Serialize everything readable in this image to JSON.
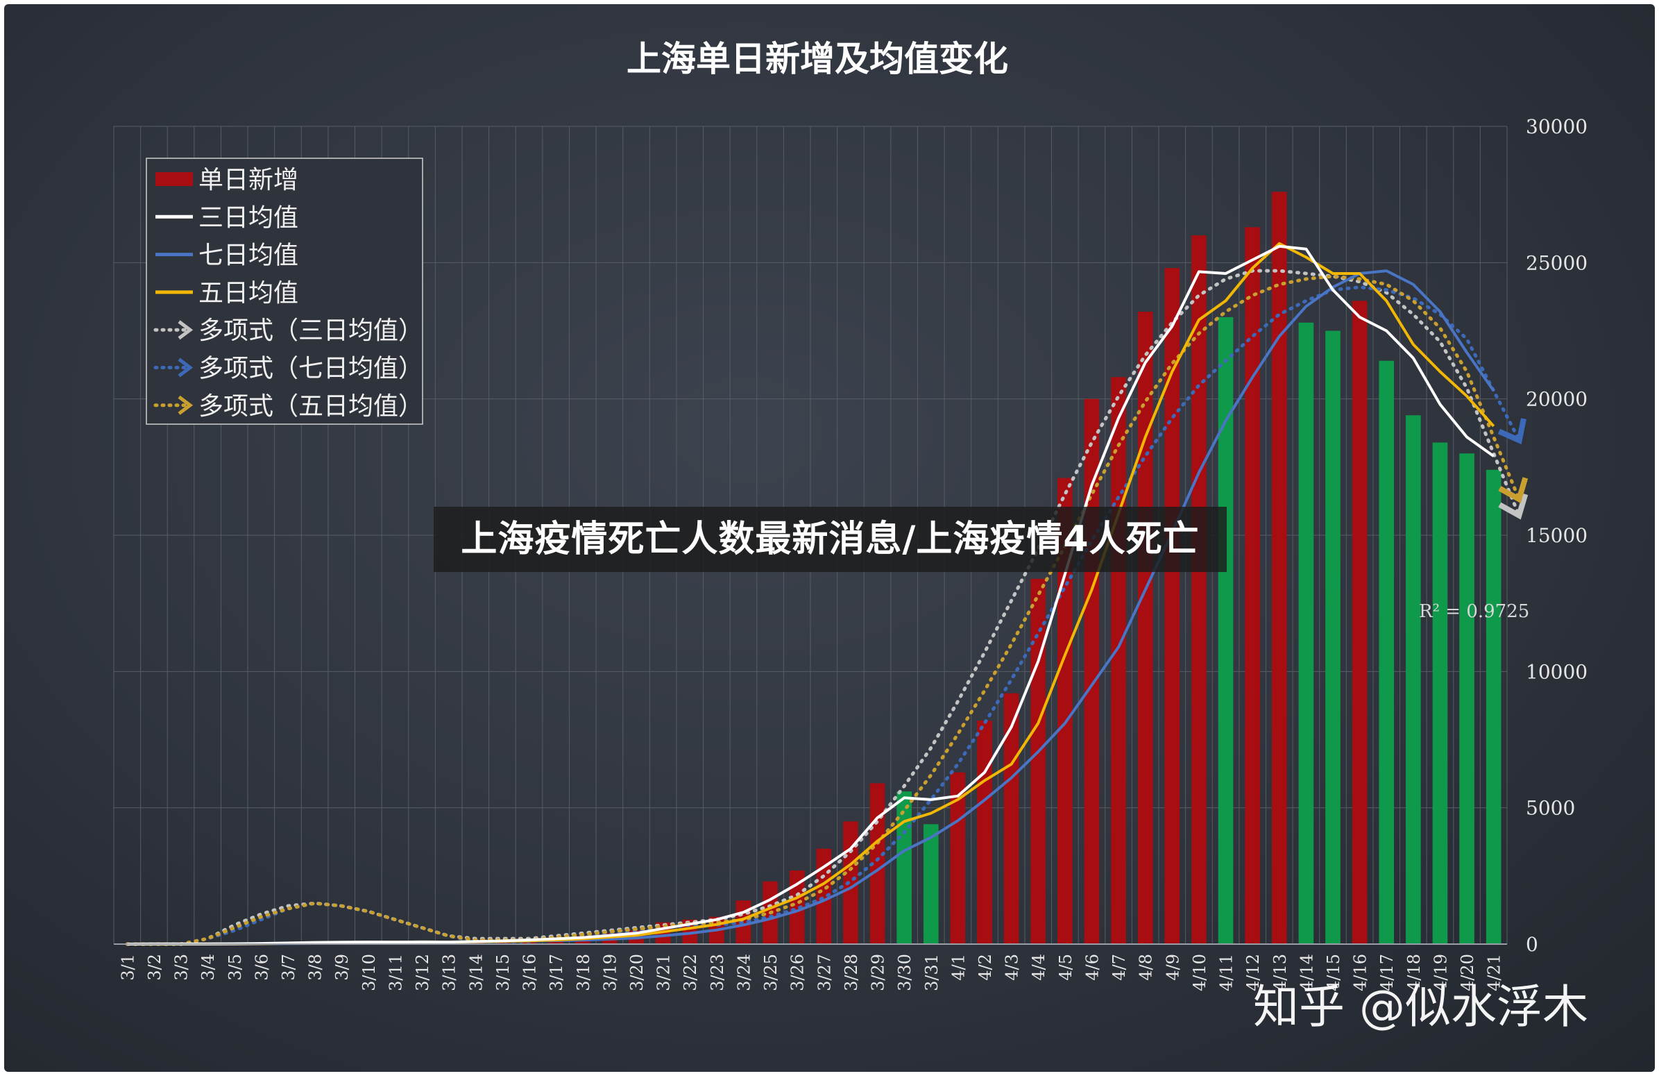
{
  "caption": "上海疫情死亡人数最新消息/上海疫情4人死亡",
  "watermark": "知乎 @似水浮木",
  "chart_data": {
    "type": "bar",
    "title": "上海单日新增及均值变化",
    "xlabel": "",
    "ylabel": "",
    "ylim": [
      0,
      30000
    ],
    "yticks": [
      "0",
      "5000",
      "10000",
      "15000",
      "20000",
      "25000",
      "30000"
    ],
    "grid": true,
    "legend_position": "top-left",
    "r_squared_label": "R² = 0.9725",
    "categories": [
      "3/1",
      "3/2",
      "3/3",
      "3/4",
      "3/5",
      "3/6",
      "3/7",
      "3/8",
      "3/9",
      "3/10",
      "3/11",
      "3/12",
      "3/13",
      "3/14",
      "3/15",
      "3/16",
      "3/17",
      "3/18",
      "3/19",
      "3/20",
      "3/21",
      "3/22",
      "3/23",
      "3/24",
      "3/25",
      "3/26",
      "3/27",
      "3/28",
      "3/29",
      "3/30",
      "3/31",
      "4/1",
      "4/2",
      "4/3",
      "4/4",
      "4/5",
      "4/6",
      "4/7",
      "4/8",
      "4/9",
      "4/10",
      "4/11",
      "4/12",
      "4/13",
      "4/14",
      "4/15",
      "4/16",
      "4/17",
      "4/18",
      "4/19",
      "4/20",
      "4/21"
    ],
    "bar_colors": [
      "#a80d12",
      "#a80d12",
      "#a80d12",
      "#a80d12",
      "#a80d12",
      "#a80d12",
      "#a80d12",
      "#a80d12",
      "#a80d12",
      "#a80d12",
      "#a80d12",
      "#a80d12",
      "#a80d12",
      "#a80d12",
      "#a80d12",
      "#a80d12",
      "#a80d12",
      "#a80d12",
      "#a80d12",
      "#a80d12",
      "#a80d12",
      "#a80d12",
      "#a80d12",
      "#a80d12",
      "#a80d12",
      "#a80d12",
      "#a80d12",
      "#a80d12",
      "#a80d12",
      "#0e9a4a",
      "#0e9a4a",
      "#a80d12",
      "#a80d12",
      "#a80d12",
      "#a80d12",
      "#a80d12",
      "#a80d12",
      "#a80d12",
      "#a80d12",
      "#a80d12",
      "#a80d12",
      "#0e9a4a",
      "#a80d12",
      "#a80d12",
      "#0e9a4a",
      "#0e9a4a",
      "#a80d12",
      "#0e9a4a",
      "#0e9a4a",
      "#0e9a4a",
      "#0e9a4a",
      "#0e9a4a"
    ],
    "series": [
      {
        "name": "单日新增",
        "kind": "bar",
        "color": "#a80d12",
        "values": [
          2,
          4,
          5,
          10,
          20,
          40,
          60,
          80,
          70,
          80,
          70,
          90,
          60,
          130,
          160,
          170,
          250,
          300,
          400,
          500,
          800,
          900,
          1000,
          1600,
          2300,
          2700,
          3500,
          4500,
          5900,
          5600,
          4400,
          6300,
          8200,
          9200,
          13400,
          17100,
          20000,
          20800,
          23200,
          24800,
          26000,
          23000,
          26300,
          27600,
          22800,
          22500,
          23600,
          21400,
          19400,
          18400,
          18000,
          17400
        ]
      },
      {
        "name": "三日均值",
        "kind": "line",
        "color": "#ffffff",
        "values": [
          0,
          4,
          4,
          6,
          12,
          23,
          40,
          60,
          70,
          77,
          73,
          80,
          73,
          93,
          117,
          153,
          193,
          240,
          317,
          400,
          567,
          733,
          900,
          1167,
          1633,
          2200,
          2833,
          3500,
          4633,
          5367,
          5300,
          5433,
          6300,
          7967,
          10367,
          13567,
          16833,
          19300,
          21333,
          22667,
          24667,
          24600,
          25100,
          25600,
          25500,
          24000,
          23000,
          22500,
          21500,
          19800,
          18600,
          17900
        ]
      },
      {
        "name": "七日均值",
        "kind": "line",
        "color": "#4a74c4",
        "values": [
          0,
          2,
          2,
          3,
          6,
          10,
          15,
          25,
          38,
          50,
          59,
          67,
          72,
          81,
          94,
          112,
          128,
          146,
          181,
          225,
          305,
          395,
          517,
          703,
          929,
          1214,
          1600,
          2064,
          2714,
          3429,
          3914,
          4529,
          5286,
          6100,
          7057,
          8100,
          9500,
          10900,
          13000,
          15100,
          17300,
          19200,
          20800,
          22300,
          23400,
          24100,
          24600,
          24700,
          24200,
          23200,
          21700,
          20300
        ]
      },
      {
        "name": "五日均值",
        "kind": "line",
        "color": "#f2b705",
        "values": [
          0,
          2,
          3,
          4,
          8,
          16,
          27,
          42,
          54,
          66,
          72,
          78,
          74,
          86,
          102,
          122,
          154,
          194,
          256,
          324,
          450,
          580,
          720,
          920,
          1320,
          1700,
          2220,
          2920,
          3780,
          4500,
          4800,
          5300,
          6000,
          6600,
          8100,
          10600,
          13000,
          15800,
          18600,
          21000,
          22900,
          23600,
          24800,
          25700,
          25200,
          24600,
          24600,
          23600,
          22000,
          21000,
          20100,
          19000
        ]
      },
      {
        "name": "多项式（三日均值）",
        "kind": "trend",
        "color": "#c3c3c3",
        "values": [
          -600,
          -300,
          -100,
          200,
          700,
          1100,
          1400,
          1500,
          1400,
          1200,
          900,
          600,
          300,
          200,
          200,
          200,
          300,
          400,
          500,
          600,
          700,
          800,
          900,
          1100,
          1400,
          1800,
          2500,
          3400,
          4500,
          5800,
          7200,
          8900,
          10700,
          12600,
          14500,
          16500,
          18400,
          20100,
          21600,
          22800,
          23800,
          24400,
          24700,
          24700,
          24600,
          24500,
          24300,
          23900,
          23100,
          22100,
          20400,
          18000
        ]
      },
      {
        "name": "多项式（七日均值）",
        "kind": "trend",
        "color": "#3d6ab8",
        "values": [
          -400,
          -200,
          0,
          200,
          500,
          900,
          1300,
          1500,
          1400,
          1200,
          900,
          600,
          300,
          100,
          100,
          100,
          200,
          300,
          400,
          500,
          600,
          700,
          700,
          800,
          1000,
          1300,
          1700,
          2300,
          3100,
          4100,
          5300,
          6600,
          8100,
          9700,
          11400,
          13100,
          14800,
          16400,
          17900,
          19300,
          20500,
          21400,
          22300,
          23100,
          23600,
          24000,
          24100,
          24000,
          23700,
          23100,
          22200,
          20300
        ]
      },
      {
        "name": "多项式（五日均值）",
        "kind": "trend",
        "color": "#c9a030",
        "values": [
          -500,
          -250,
          -50,
          200,
          600,
          1000,
          1300,
          1500,
          1400,
          1200,
          900,
          600,
          300,
          150,
          150,
          150,
          250,
          350,
          450,
          550,
          650,
          750,
          800,
          900,
          1150,
          1500,
          2000,
          2750,
          3700,
          4900,
          6200,
          7700,
          9300,
          11000,
          12800,
          14600,
          16500,
          18300,
          19900,
          21300,
          22400,
          23200,
          23800,
          24200,
          24400,
          24500,
          24400,
          24200,
          23600,
          22600,
          21000,
          18600
        ]
      }
    ]
  }
}
